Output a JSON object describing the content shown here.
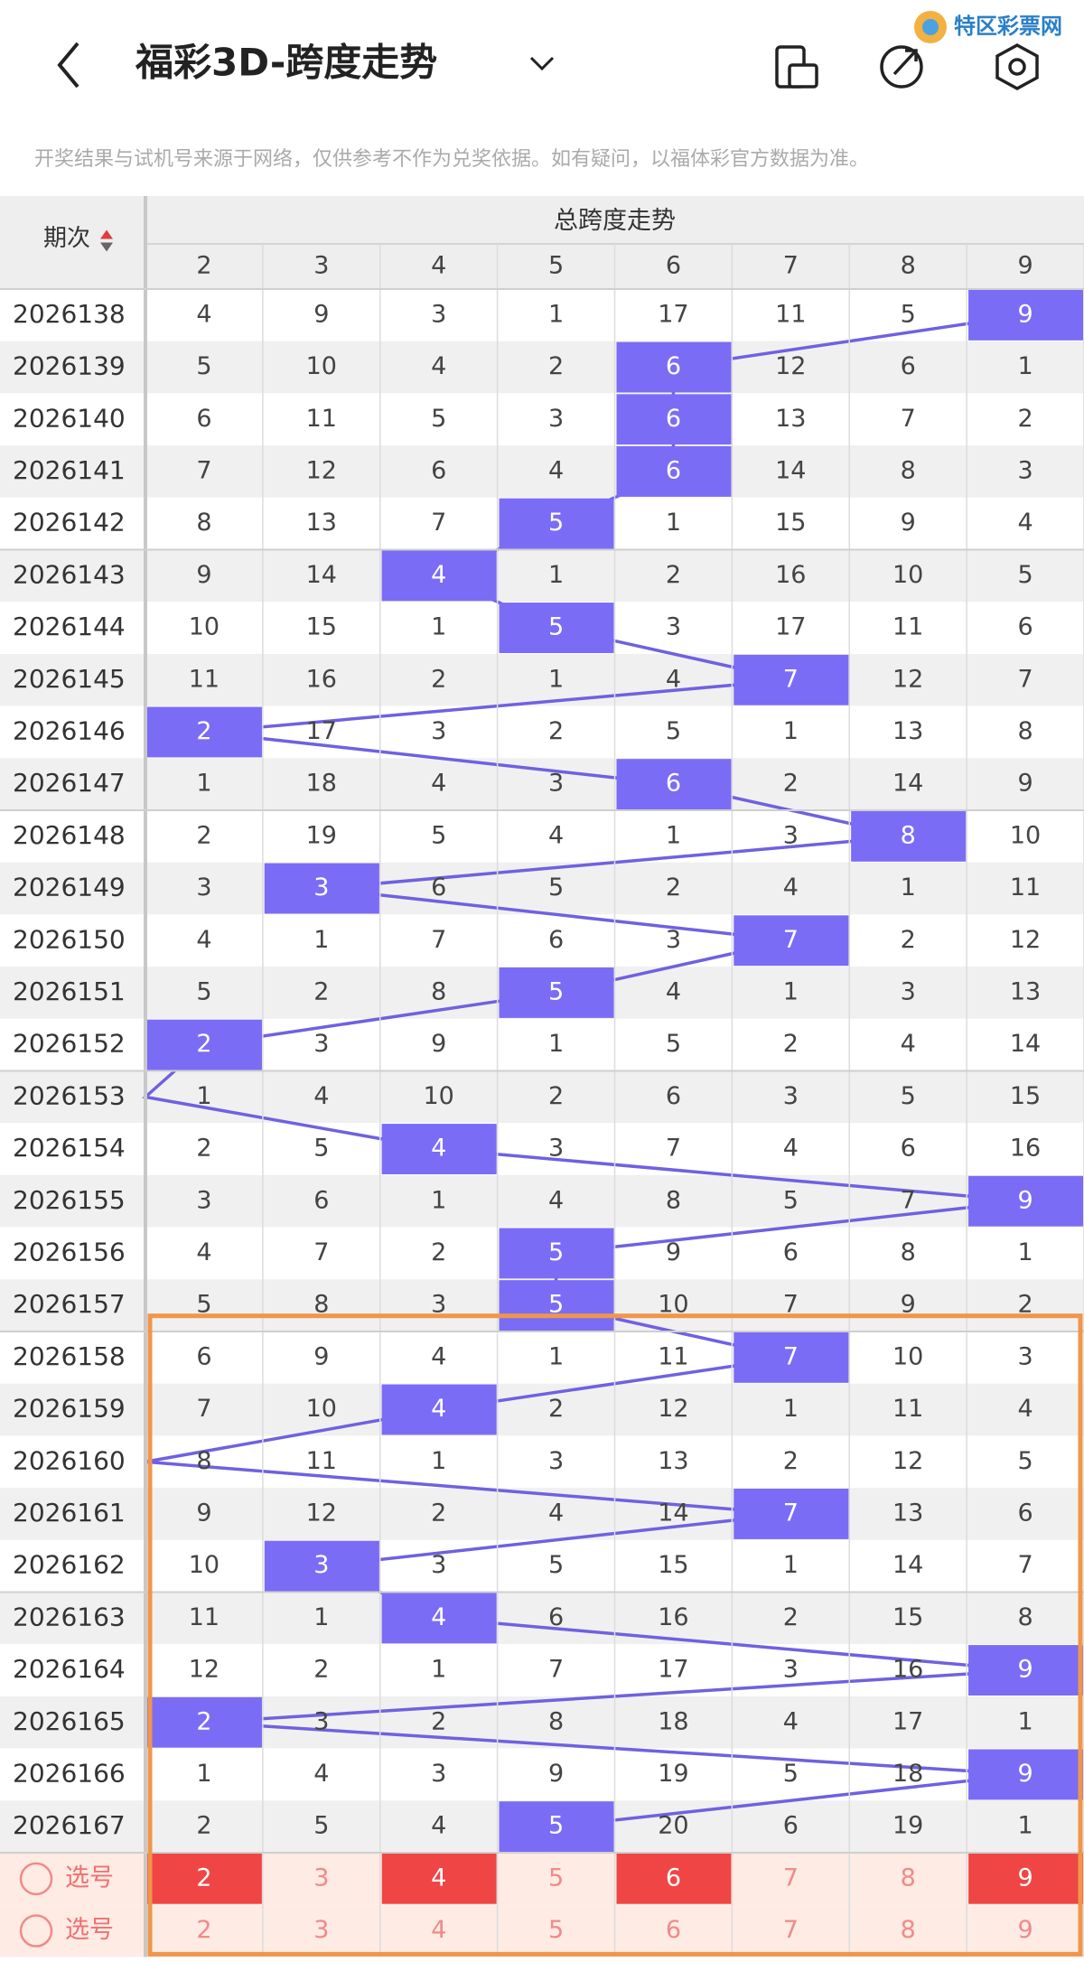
{
  "header": {
    "title": "福彩3D-跨度走势",
    "logo": "特区彩票网"
  },
  "notice": "开奖结果与试机号来源于网络，仅供参考不作为兑奖依据。如有疑问，以福体彩官方数据为准。",
  "table": {
    "period_header": "期次",
    "group_header": "总跨度走势",
    "columns": [
      "2",
      "3",
      "4",
      "5",
      "6",
      "7",
      "8",
      "9"
    ],
    "hit_color": "#7b6cf6",
    "line_color": "#6f61e0",
    "rows": [
      {
        "period": "2026138",
        "values": [
          4,
          9,
          3,
          1,
          17,
          11,
          5,
          9
        ],
        "hit": 7
      },
      {
        "period": "2026139",
        "values": [
          5,
          10,
          4,
          2,
          6,
          12,
          6,
          1
        ],
        "hit": 4
      },
      {
        "period": "2026140",
        "values": [
          6,
          11,
          5,
          3,
          6,
          13,
          7,
          2
        ],
        "hit": 4
      },
      {
        "period": "2026141",
        "values": [
          7,
          12,
          6,
          4,
          6,
          14,
          8,
          3
        ],
        "hit": 4
      },
      {
        "period": "2026142",
        "values": [
          8,
          13,
          7,
          5,
          1,
          15,
          9,
          4
        ],
        "hit": 3
      },
      {
        "period": "2026143",
        "values": [
          9,
          14,
          4,
          1,
          2,
          16,
          10,
          5
        ],
        "hit": 2
      },
      {
        "period": "2026144",
        "values": [
          10,
          15,
          1,
          5,
          3,
          17,
          11,
          6
        ],
        "hit": 3
      },
      {
        "period": "2026145",
        "values": [
          11,
          16,
          2,
          1,
          4,
          7,
          12,
          7
        ],
        "hit": 5
      },
      {
        "period": "2026146",
        "values": [
          2,
          17,
          3,
          2,
          5,
          1,
          13,
          8
        ],
        "hit": 0
      },
      {
        "period": "2026147",
        "values": [
          1,
          18,
          4,
          3,
          6,
          2,
          14,
          9
        ],
        "hit": 4
      },
      {
        "period": "2026148",
        "values": [
          2,
          19,
          5,
          4,
          1,
          3,
          8,
          10
        ],
        "hit": 6
      },
      {
        "period": "2026149",
        "values": [
          3,
          3,
          6,
          5,
          2,
          4,
          1,
          11
        ],
        "hit": 1
      },
      {
        "period": "2026150",
        "values": [
          4,
          1,
          7,
          6,
          3,
          7,
          2,
          12
        ],
        "hit": 5
      },
      {
        "period": "2026151",
        "values": [
          5,
          2,
          8,
          5,
          4,
          1,
          3,
          13
        ],
        "hit": 3
      },
      {
        "period": "2026152",
        "values": [
          2,
          3,
          9,
          1,
          5,
          2,
          4,
          14
        ],
        "hit": 0
      },
      {
        "period": "2026153",
        "values": [
          1,
          4,
          10,
          2,
          6,
          3,
          5,
          15
        ],
        "hit": null
      },
      {
        "period": "2026154",
        "values": [
          2,
          5,
          4,
          3,
          7,
          4,
          6,
          16
        ],
        "hit": 2
      },
      {
        "period": "2026155",
        "values": [
          3,
          6,
          1,
          4,
          8,
          5,
          7,
          9
        ],
        "hit": 7
      },
      {
        "period": "2026156",
        "values": [
          4,
          7,
          2,
          5,
          9,
          6,
          8,
          1
        ],
        "hit": 3
      },
      {
        "period": "2026157",
        "values": [
          5,
          8,
          3,
          5,
          10,
          7,
          9,
          2
        ],
        "hit": 3
      },
      {
        "period": "2026158",
        "values": [
          6,
          9,
          4,
          1,
          11,
          7,
          10,
          3
        ],
        "hit": 5
      },
      {
        "period": "2026159",
        "values": [
          7,
          10,
          4,
          2,
          12,
          1,
          11,
          4
        ],
        "hit": 2
      },
      {
        "period": "2026160",
        "values": [
          8,
          11,
          1,
          3,
          13,
          2,
          12,
          5
        ],
        "hit": null
      },
      {
        "period": "2026161",
        "values": [
          9,
          12,
          2,
          4,
          14,
          7,
          13,
          6
        ],
        "hit": 5
      },
      {
        "period": "2026162",
        "values": [
          10,
          3,
          3,
          5,
          15,
          1,
          14,
          7
        ],
        "hit": 1
      },
      {
        "period": "2026163",
        "values": [
          11,
          1,
          4,
          6,
          16,
          2,
          15,
          8
        ],
        "hit": 2
      },
      {
        "period": "2026164",
        "values": [
          12,
          2,
          1,
          7,
          17,
          3,
          16,
          9
        ],
        "hit": 7
      },
      {
        "period": "2026165",
        "values": [
          2,
          3,
          2,
          8,
          18,
          4,
          17,
          1
        ],
        "hit": 0
      },
      {
        "period": "2026166",
        "values": [
          1,
          4,
          3,
          9,
          19,
          5,
          18,
          9
        ],
        "hit": 7
      },
      {
        "period": "2026167",
        "values": [
          2,
          5,
          4,
          5,
          20,
          6,
          19,
          1
        ],
        "hit": 3
      }
    ],
    "select_rows": [
      {
        "label": "选号",
        "selected": [
          0,
          2,
          4,
          7
        ]
      },
      {
        "label": "选号",
        "selected": []
      }
    ]
  }
}
